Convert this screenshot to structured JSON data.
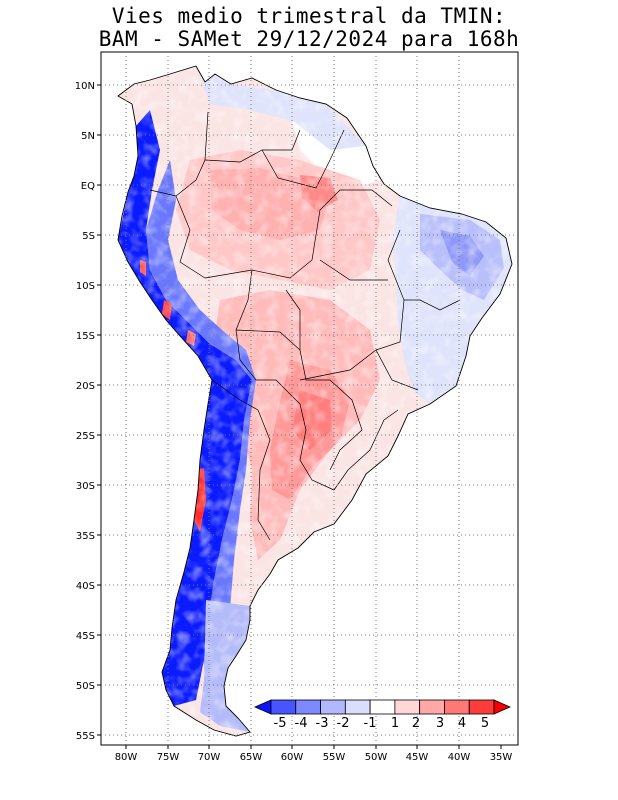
{
  "title": {
    "line1": "Vies medio trimestral da TMIN:",
    "line2": "BAM - SAMet 29/12/2024  para 168h"
  },
  "map": {
    "region": "South America",
    "lat_range": [
      -56,
      13
    ],
    "lon_range": [
      -83,
      -35
    ],
    "lat_ticks": [
      "10N",
      "5N",
      "EQ",
      "5S",
      "10S",
      "15S",
      "20S",
      "25S",
      "30S",
      "35S",
      "40S",
      "45S",
      "50S",
      "55S"
    ],
    "lon_ticks": [
      "80W",
      "75W",
      "70W",
      "65W",
      "60W",
      "55W",
      "50W",
      "45W",
      "40W",
      "35W"
    ],
    "grid": "dotted"
  },
  "colorbar": {
    "labels": [
      "-5",
      "-4",
      "-3",
      "-2",
      "-1",
      "1",
      "2",
      "3",
      "4",
      "5"
    ],
    "colors": [
      "#0a14ff",
      "#4655ff",
      "#7e89ff",
      "#b0b8ff",
      "#dadefd",
      "#ffffff",
      "#ffd7d7",
      "#ffa8a8",
      "#ff7878",
      "#ff3c3c",
      "#f50000"
    ]
  }
}
